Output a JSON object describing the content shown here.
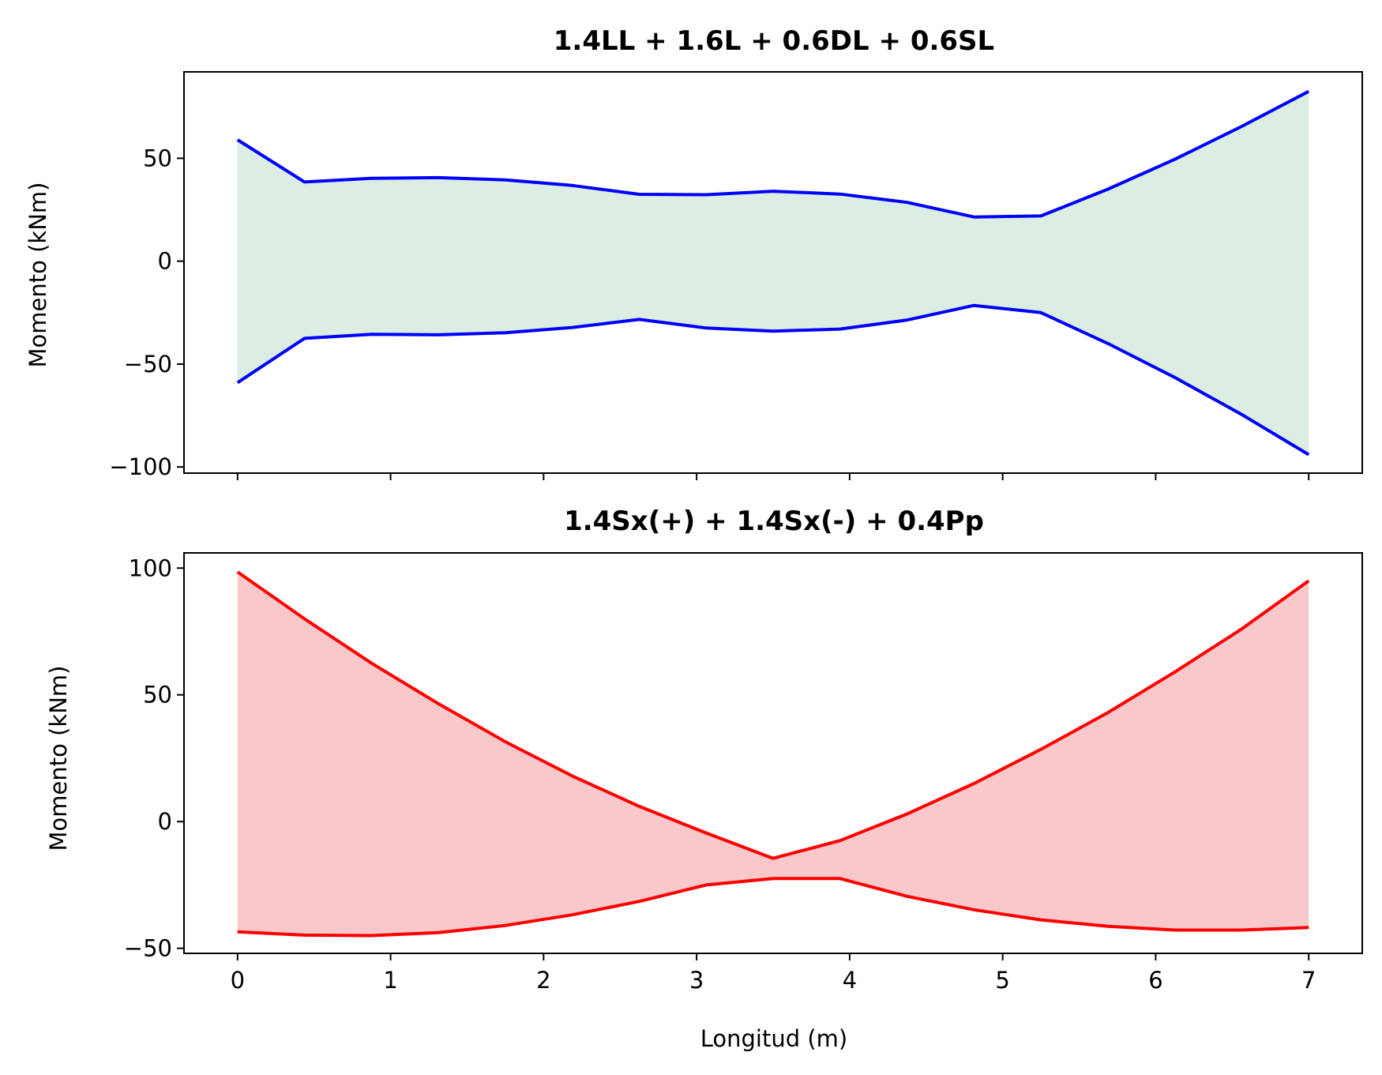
{
  "chart_data": [
    {
      "type": "area",
      "title": "1.4LL + 1.6L + 0.6DL + 0.6SL",
      "xlabel": "",
      "ylabel": "Momento (kNm)",
      "xlim": [
        -0.35,
        7.35
      ],
      "ylim": [
        -103,
        92
      ],
      "yticks": [
        -100,
        -50,
        0,
        50
      ],
      "ytick_labels": [
        "−100",
        "−50",
        "0",
        "50"
      ],
      "xticks": [
        0,
        1,
        2,
        3,
        4,
        5,
        6,
        7
      ],
      "xtick_labels": [],
      "grid": false,
      "fill_color": "#dceee3",
      "line_color": "#0000ff",
      "x": [
        0,
        0.4375,
        0.875,
        1.3125,
        1.75,
        2.1875,
        2.625,
        3.0625,
        3.5,
        3.9375,
        4.375,
        4.8125,
        5.25,
        5.6875,
        6.125,
        6.5625,
        7
      ],
      "series": [
        {
          "values": [
            59,
            38.5,
            40.3,
            40.6,
            39.5,
            36.8,
            32.5,
            32.3,
            34,
            32.6,
            28.6,
            21.5,
            22,
            35,
            49.5,
            65.5,
            82.5
          ]
        },
        {
          "values": [
            -59,
            -37.5,
            -35.5,
            -35.8,
            -34.8,
            -32.2,
            -28.3,
            -32.5,
            -34,
            -33,
            -28.6,
            -21.5,
            -25,
            -40,
            -56.5,
            -74.5,
            -94
          ]
        }
      ]
    },
    {
      "type": "area",
      "title": "1.4Sx(+) + 1.4Sx(-) + 0.4Pp",
      "xlabel": "Longitud (m)",
      "ylabel": "Momento (kNm)",
      "xlim": [
        -0.35,
        7.35
      ],
      "ylim": [
        -52,
        106
      ],
      "yticks": [
        -50,
        0,
        50,
        100
      ],
      "ytick_labels": [
        "−50",
        "0",
        "50",
        "100"
      ],
      "xticks": [
        0,
        1,
        2,
        3,
        4,
        5,
        6,
        7
      ],
      "xtick_labels": [
        "0",
        "1",
        "2",
        "3",
        "4",
        "5",
        "6",
        "7"
      ],
      "grid": false,
      "fill_color": "#f8c8ca",
      "line_color": "#ff0000",
      "x": [
        0,
        0.4375,
        0.875,
        1.3125,
        1.75,
        2.1875,
        2.625,
        3.0625,
        3.5,
        3.9375,
        4.375,
        4.8125,
        5.25,
        5.6875,
        6.125,
        6.5625,
        7
      ],
      "series": [
        {
          "values": [
            98.5,
            80,
            62.5,
            46.5,
            31.5,
            18,
            6,
            -4.5,
            -14.5,
            -7.5,
            3,
            15,
            28.5,
            43,
            59,
            76,
            95
          ]
        },
        {
          "values": [
            -43.5,
            -44.8,
            -45,
            -43.8,
            -41,
            -36.8,
            -31.5,
            -25,
            -22.5,
            -22.5,
            -29.5,
            -34.8,
            -38.8,
            -41.3,
            -42.8,
            -42.8,
            -41.8
          ]
        }
      ]
    }
  ]
}
